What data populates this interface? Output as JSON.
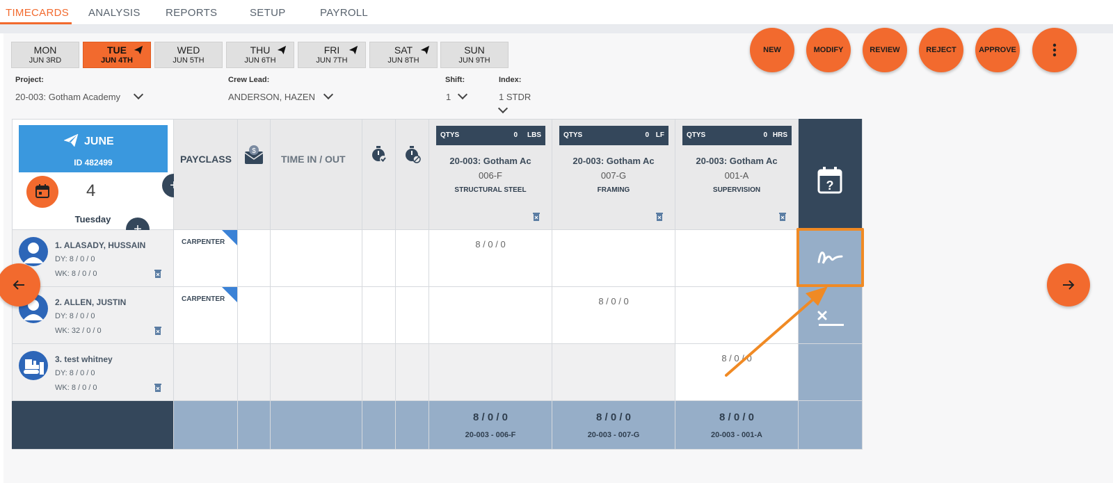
{
  "nav": {
    "tabs": [
      "TIMECARDS",
      "ANALYSIS",
      "REPORTS",
      "SETUP",
      "PAYROLL"
    ],
    "active": "TIMECARDS"
  },
  "days": [
    {
      "name": "MON",
      "date": "JUN 3RD",
      "sent": false,
      "active": false
    },
    {
      "name": "TUE",
      "date": "JUN 4TH",
      "sent": true,
      "active": true
    },
    {
      "name": "WED",
      "date": "JUN 5TH",
      "sent": false,
      "active": false
    },
    {
      "name": "THU",
      "date": "JUN 6TH",
      "sent": true,
      "active": false
    },
    {
      "name": "FRI",
      "date": "JUN 7TH",
      "sent": true,
      "active": false
    },
    {
      "name": "SAT",
      "date": "JUN 8TH",
      "sent": true,
      "active": false
    },
    {
      "name": "SUN",
      "date": "JUN 9TH",
      "sent": false,
      "active": false
    }
  ],
  "actions": [
    "NEW",
    "MODIFY",
    "REVIEW",
    "REJECT",
    "APPROVE"
  ],
  "filters": {
    "project_label": "Project:",
    "project_value": "20-003: Gotham Academy",
    "crew_label": "Crew Lead:",
    "crew_value": "ANDERSON, HAZEN",
    "shift_label": "Shift:",
    "shift_value": "1",
    "index_label": "Index:",
    "index_value": "1 STDR"
  },
  "card": {
    "month": "JUNE",
    "id": "ID 482499",
    "day_number": "4",
    "weekday": "Tuesday"
  },
  "headers": {
    "payclass": "PAYCLASS",
    "time": "TIME IN / OUT"
  },
  "cost_codes": [
    {
      "qty_label": "QTYS",
      "qty_value": "0",
      "unit": "LBS",
      "project": "20-003: Gotham Ac",
      "code": "006-F",
      "category": "STRUCTURAL STEEL",
      "total": "8 / 0 / 0",
      "total_code": "20-003 - 006-F"
    },
    {
      "qty_label": "QTYS",
      "qty_value": "0",
      "unit": "LF",
      "project": "20-003: Gotham Ac",
      "code": "007-G",
      "category": "FRAMING",
      "total": "8 / 0 / 0",
      "total_code": "20-003 - 007-G"
    },
    {
      "qty_label": "QTYS",
      "qty_value": "0",
      "unit": "HRS",
      "project": "20-003: Gotham Ac",
      "code": "001-A",
      "category": "SUPERVISION",
      "total": "8 / 0 / 0",
      "total_code": "20-003 - 001-A"
    }
  ],
  "employees": [
    {
      "name": "1. ALASADY, HUSSAIN",
      "dy": "DY: 8 / 0 / 0",
      "wk": "WK: 8 / 0 / 0",
      "payclass": "CARPENTER",
      "hours": [
        "8 / 0 / 0",
        "",
        ""
      ],
      "avatar": "person-icon"
    },
    {
      "name": "2. ALLEN, JUSTIN",
      "dy": "DY: 8 / 0 / 0",
      "wk": "WK: 32 / 0 / 0",
      "payclass": "CARPENTER",
      "hours": [
        "",
        "8 / 0 / 0",
        ""
      ],
      "avatar": "person-icon"
    },
    {
      "name": "3. test whitney",
      "dy": "DY: 8 / 0 / 0",
      "wk": "WK: 8 / 0 / 0",
      "payclass": "",
      "hours": [
        "",
        "",
        "8 / 0 / 0"
      ],
      "avatar": "bulldozer-icon"
    }
  ],
  "colors": {
    "accent": "#f26a2e",
    "dark": "#34475b",
    "slate": "#96aec8",
    "blue": "#3a98de",
    "highlight": "#f08a24"
  }
}
